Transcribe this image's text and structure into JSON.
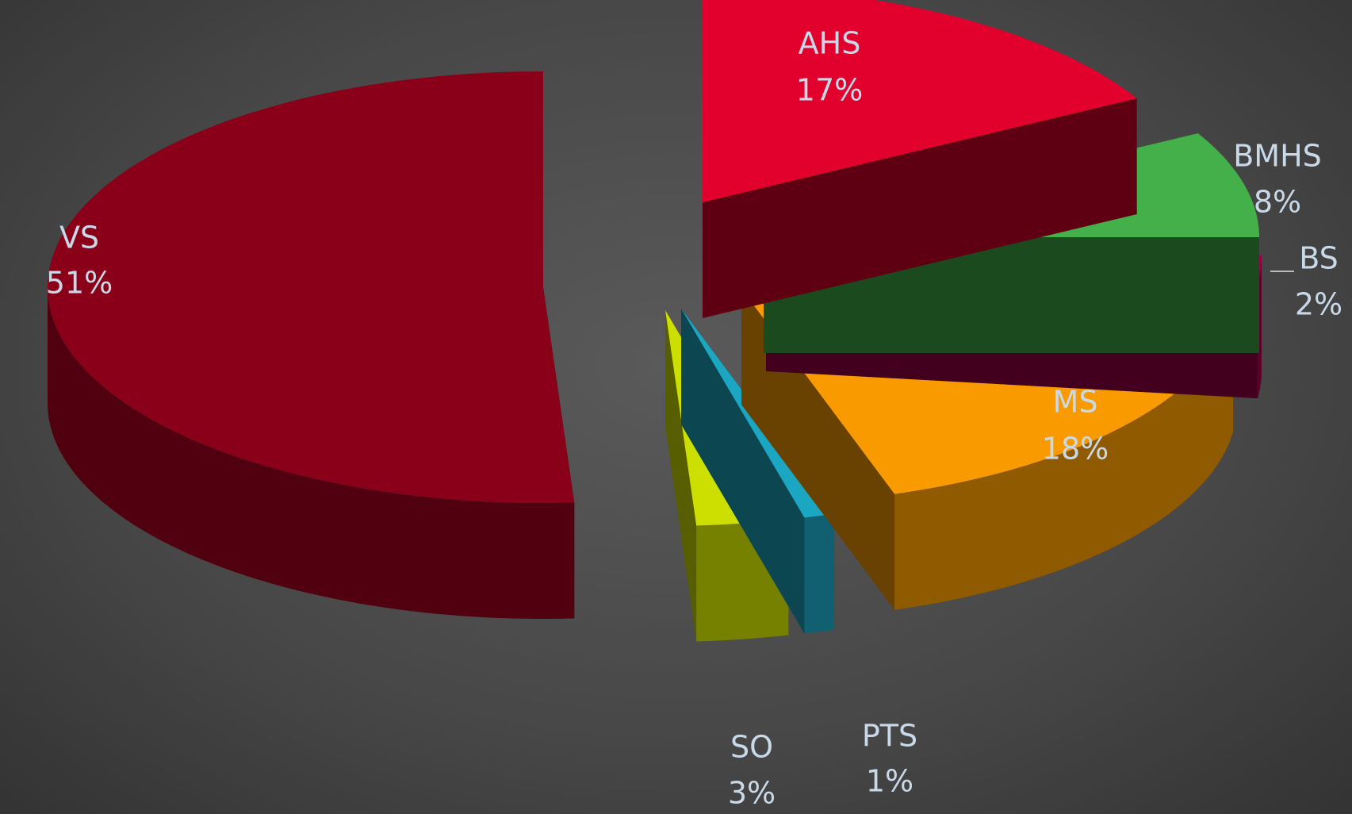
{
  "chart_data": {
    "type": "pie",
    "categories": [
      "AHS",
      "BMHS",
      "BS",
      "MS",
      "PTS",
      "SO",
      "VS"
    ],
    "values": [
      17,
      8,
      2,
      18,
      1,
      3,
      51
    ],
    "value_labels": [
      "17%",
      "8%",
      "2%",
      "18%",
      "1%",
      "3%",
      "51%"
    ],
    "colors": [
      "#e2002c",
      "#43b04a",
      "#9e0048",
      "#f99b00",
      "#1ba6c2",
      "#cddf00",
      "#8a0019"
    ],
    "three_d": true,
    "exploded": true
  }
}
